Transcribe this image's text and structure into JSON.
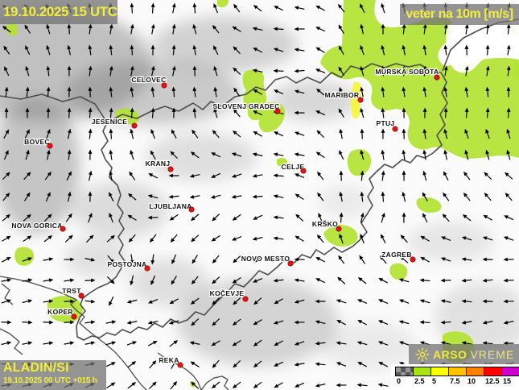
{
  "overlays": {
    "valid_time": "19.10.2025 15 UTC",
    "variable": "veter na 10m [m/s]",
    "model": "ALADIN/SI",
    "run": "19.10.2025 00 UTC +015 h",
    "brand_agency": "ARSO",
    "brand_product": "VREME"
  },
  "legend": {
    "unit_ticks": [
      "0",
      "2.5",
      "5",
      "7.5",
      "10",
      "12.5",
      "15"
    ],
    "cell_colors": [
      "checker",
      "#a8e414",
      "#ffff00",
      "#ffc000",
      "#ff8000",
      "#ff0000",
      "#cc00cc"
    ]
  },
  "colors": {
    "city_dot": "#e81212",
    "city_dot_edge": "#7a0000",
    "overlay_text": "#f2ee3c",
    "area_green": "#b3e332",
    "area_yellow": "#f6f53e",
    "border_line": "#4d4d4d",
    "arrow": "#000000"
  },
  "cities": [
    {
      "name": "CELOVEC",
      "dot": [
        204,
        106
      ],
      "label": [
        185,
        99
      ]
    },
    {
      "name": "JESENICE",
      "dot": [
        167,
        156
      ],
      "label": [
        136,
        151
      ]
    },
    {
      "name": "BOVEC",
      "dot": [
        62,
        181
      ],
      "label": [
        46,
        176
      ]
    },
    {
      "name": "KRANJ",
      "dot": [
        212,
        210
      ],
      "label": [
        196,
        203
      ]
    },
    {
      "name": "LJUBLJANA",
      "dot": [
        238,
        260
      ],
      "label": [
        212,
        256
      ]
    },
    {
      "name": "NOVA GORICA",
      "dot": [
        78,
        284
      ],
      "label": [
        46,
        280
      ]
    },
    {
      "name": "POSTOJNA",
      "dot": [
        183,
        333
      ],
      "label": [
        158,
        328
      ]
    },
    {
      "name": "TRST",
      "dot": [
        101,
        367
      ],
      "label": [
        89,
        361
      ]
    },
    {
      "name": "KOPER",
      "dot": [
        92,
        393
      ],
      "label": [
        75,
        387
      ]
    },
    {
      "name": "KOČEVJE",
      "dot": [
        305,
        371
      ],
      "label": [
        282,
        364
      ]
    },
    {
      "name": "REKA",
      "dot": [
        224,
        453
      ],
      "label": [
        210,
        447
      ]
    },
    {
      "name": "NOVO MESTO",
      "dot": [
        361,
        327
      ],
      "label": [
        330,
        321
      ]
    },
    {
      "name": "KRŠKO",
      "dot": [
        421,
        284
      ],
      "label": [
        404,
        278
      ]
    },
    {
      "name": "CELJE",
      "dot": [
        377,
        212
      ],
      "label": [
        364,
        207
      ]
    },
    {
      "name": "SLOVENJ GRADEC",
      "dot": [
        345,
        138
      ],
      "label": [
        306,
        132
      ]
    },
    {
      "name": "MARIBOR",
      "dot": [
        448,
        124
      ],
      "label": [
        425,
        118
      ]
    },
    {
      "name": "PTUJ",
      "dot": [
        491,
        160
      ],
      "label": [
        479,
        153
      ]
    },
    {
      "name": "MURSKA SOBOTA",
      "dot": [
        543,
        96
      ],
      "label": [
        506,
        89
      ]
    },
    {
      "name": "ZAGREB",
      "dot": [
        513,
        322
      ],
      "label": [
        493,
        316
      ]
    }
  ],
  "wind_field": {
    "cols": 13,
    "rows": 10,
    "spacing": 26,
    "angles_deg": [
      [
        150,
        120,
        95,
        90,
        80,
        120,
        150,
        170,
        120,
        95,
        90,
        85,
        80
      ],
      [
        140,
        110,
        90,
        85,
        80,
        125,
        165,
        180,
        115,
        95,
        90,
        85,
        80
      ],
      [
        95,
        90,
        88,
        90,
        85,
        95,
        160,
        175,
        110,
        95,
        92,
        88,
        85
      ],
      [
        70,
        78,
        85,
        95,
        105,
        120,
        150,
        170,
        105,
        92,
        95,
        100,
        95
      ],
      [
        50,
        60,
        80,
        120,
        170,
        195,
        185,
        160,
        95,
        90,
        110,
        125,
        130
      ],
      [
        40,
        50,
        75,
        150,
        210,
        215,
        195,
        130,
        85,
        80,
        130,
        145,
        150
      ],
      [
        25,
        15,
        0,
        290,
        250,
        225,
        205,
        170,
        120,
        140,
        165,
        180,
        180
      ],
      [
        10,
        5,
        0,
        200,
        215,
        225,
        215,
        185,
        155,
        160,
        175,
        185,
        185
      ],
      [
        5,
        0,
        10,
        25,
        45,
        215,
        215,
        190,
        160,
        155,
        170,
        180,
        190
      ],
      [
        0,
        10,
        20,
        40,
        60,
        230,
        220,
        200,
        170,
        160,
        165,
        175,
        195
      ]
    ]
  },
  "map": {
    "green_areas": [
      "M398,78 C402,64 412,58 425,56 L427,0 L467,0 C462,18 468,34 488,34 C510,34 530,18 552,22 C570,25 566,44 553,54 C543,62 540,74 553,82 C585,76 618,68 645,74 L645,196 C618,188 596,200 576,196 C558,192 550,178 534,184 C516,190 502,176 508,158 C512,144 502,132 487,136 C470,140 458,132 462,116 C465,102 452,92 439,97 C424,102 408,92 398,78 Z",
      "M306,88 C318,84 330,88 328,100 C326,110 334,118 330,128 C344,124 356,130 354,142 C352,154 344,162 334,164 C326,166 320,158 322,148 C314,152 306,146 308,136 C302,130 300,120 306,112 C300,104 300,92 306,88 Z",
      "M144,138 C154,132 168,134 172,142 C176,150 168,156 158,154 C148,158 140,146 144,138 Z",
      "M10,30 C18,26 24,32 22,40 C20,46 12,46 9,40 C7,36 7,33 10,30 Z",
      "M270,0 L284,0 C284,6 280,10 274,9 C270,8 269,4 270,0 Z",
      "M62,372 C74,364 94,366 100,376 C106,384 102,396 90,399 C78,402 64,398 60,388 C58,380 58,376 62,372 Z",
      "M22,308 C32,304 42,308 42,318 C42,326 34,332 25,329 C17,326 16,313 22,308 Z",
      "M402,290 C408,280 424,276 436,282 C446,287 448,298 438,303 C424,310 406,304 402,290 Z",
      "M488,328 C498,324 508,330 506,340 C504,348 494,350 488,344 C483,339 483,332 488,328 Z",
      "M519,247 C530,242 544,246 548,254 C551,262 540,266 528,263 C519,260 515,252 519,247 Z",
      "M632,26 C640,24 645,26 645,34 L645,44 C638,46 631,40 632,26 Z",
      "M640,76 C645,74 645,78 645,98 C638,98 636,84 640,76 Z",
      "M552,414 C566,408 584,412 588,424 C592,436 584,448 570,450 C558,452 548,442 550,430 C551,422 548,418 552,414 Z",
      "M236,474 C240,472 244,474 243,479 C241,482 236,481 236,474 Z",
      "M344,198 C350,194 358,196 357,202 C356,207 348,208 344,204 Z",
      "M436,188 C448,182 460,186 461,198 C462,210 452,220 442,218 C432,216 428,198 436,188 Z"
    ],
    "white_areas": [
      "M558,30 C580,20 612,16 645,20 L645,66 C622,60 604,68 592,82 C580,96 562,92 558,74 C554,56 552,40 558,30 Z"
    ],
    "yellow_areas": [
      "M440,102 C446,100 450,104 449,114 L447,140 C446,148 441,150 438,144 C435,136 436,112 440,102 Z"
    ],
    "borders": [
      "M0,119 L26,123 L52,117 L78,126 L100,120 L118,129 L133,152",
      "M133,152 L152,142 L170,147 L188,138 L205,132 L222,138 L240,128 L252,136 L262,126 L276,132 L292,120 L306,117 L318,108 L330,112 L342,99 L356,95 L368,103 L382,96 L398,103 L412,90 L424,96 L436,82 L450,86 L462,79 L478,84 L492,79 L508,83 L522,80 L536,88 L548,90",
      "M550,88 L560,62 L576,47 L598,36 L620,28 L645,24",
      "M548,90 L555,102 L549,115 L556,128 L547,142 L553,155 L543,168 L549,180 L538,190 L528,196 L518,193 L510,202 L500,198 L488,208 L478,204 L468,213 L459,222 L464,233 L457,244 L463,255 L456,266 L449,277 L456,288 L447,298 L438,306",
      "M438,306 L425,313 L415,307 L403,316 L393,310 L386,320 L375,316 L366,326 L354,322 L344,332 L333,341 L322,336 L312,347 L303,356 L292,352 L283,362 L272,372 L263,381 L254,391 L243,387 L233,397 L222,401 L212,396 L202,406 L192,401 L183,409 L172,406 L162,413 L152,409 L143,416 L133,413 L124,419 L114,417 L104,422 L96,418 L95,405",
      "M133,152 L128,163 L134,175 L126,186 L131,198 L139,208 L136,220 L146,230 L150,242 L146,254 L153,264 L148,274 L154,284 L147,294 L153,304 L148,314 L155,324 L150,334 L144,344 L134,352 L122,357 L111,364 L103,370 L100,378 L106,386 L99,394 L95,405"
    ],
    "coastlines": [
      "M0,343 L18,346 L36,350 L55,356 L70,361 L82,366 L95,372 L88,378 L96,386 L105,393 L99,401 L108,409 L118,417 L130,426 L142,436 L152,447 L160,457 L168,468 L176,478 L182,484",
      "M196,438 L208,446 L220,452 L232,459 L240,466 L246,474 L250,484",
      "M250,484 L257,475 L266,469 L276,467 L283,471 L279,479 L284,484",
      "M2,352 L12,360 L6,370 L16,378",
      "M0,408 L12,414 L24,424 L18,432 L28,440"
    ]
  }
}
